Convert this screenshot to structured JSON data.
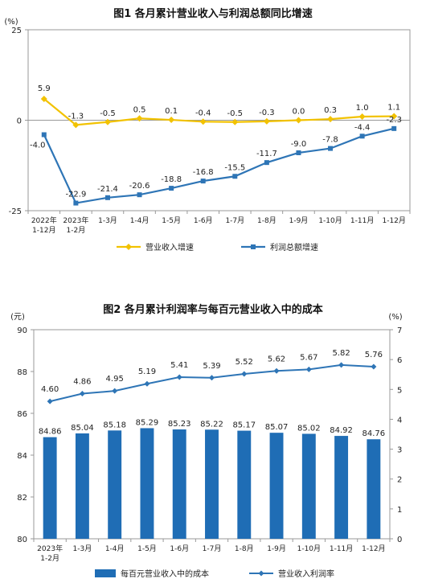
{
  "chart_data": [
    {
      "type": "line",
      "title": "图1  各月累计营业收入与利润总额同比增速",
      "y_unit": "(%)",
      "ylim": [
        -25,
        25
      ],
      "yticks": [
        "25",
        "0",
        "-25"
      ],
      "categories": [
        [
          "2022年",
          "1-12月"
        ],
        [
          "2023年",
          "1-2月"
        ],
        [
          "1-3月"
        ],
        [
          "1-4月"
        ],
        [
          "1-5月"
        ],
        [
          "1-6月"
        ],
        [
          "1-7月"
        ],
        [
          "1-8月"
        ],
        [
          "1-9月"
        ],
        [
          "1-10月"
        ],
        [
          "1-11月"
        ],
        [
          "1-12月"
        ]
      ],
      "series": [
        {
          "name": "营业收入增速",
          "color": "#F2C200",
          "values": [
            5.9,
            -1.3,
            -0.5,
            0.5,
            0.1,
            -0.4,
            -0.5,
            -0.3,
            0.0,
            0.3,
            1.0,
            1.1
          ],
          "labels": [
            "5.9",
            "-1.3",
            "-0.5",
            "0.5",
            "0.1",
            "-0.4",
            "-0.5",
            "-0.3",
            "0.0",
            "0.3",
            "1.0",
            "1.1"
          ]
        },
        {
          "name": "利润总额增速",
          "color": "#2E75B6",
          "values": [
            -4.0,
            -22.9,
            -21.4,
            -20.6,
            -18.8,
            -16.8,
            -15.5,
            -11.7,
            -9.0,
            -7.8,
            -4.4,
            -2.3
          ],
          "labels": [
            "-4.0",
            "-22.9",
            "-21.4",
            "-20.6",
            "-18.8",
            "-16.8",
            "-15.5",
            "-11.7",
            "-9.0",
            "-7.8",
            "-4.4",
            "-2.3"
          ]
        }
      ],
      "legend_position": "bottom"
    },
    {
      "type": "bar+line",
      "title": "图2  各月累计利润率与每百元营业收入中的成本",
      "left_unit": "(元)",
      "right_unit": "(%)",
      "ylim_left": [
        80,
        90
      ],
      "yticks_left": [
        "80",
        "82",
        "84",
        "86",
        "88",
        "90"
      ],
      "ylim_right": [
        0,
        7
      ],
      "yticks_right": [
        "0",
        "1",
        "2",
        "3",
        "4",
        "5",
        "6",
        "7"
      ],
      "categories": [
        [
          "2023年",
          "1-2月"
        ],
        [
          "1-3月"
        ],
        [
          "1-4月"
        ],
        [
          "1-5月"
        ],
        [
          "1-6月"
        ],
        [
          "1-7月"
        ],
        [
          "1-8月"
        ],
        [
          "1-9月"
        ],
        [
          "1-10月"
        ],
        [
          "1-11月"
        ],
        [
          "1-12月"
        ]
      ],
      "series": [
        {
          "name": "每百元营业收入中的成本",
          "type": "bar",
          "axis": "left",
          "color": "#1F6DB5",
          "values": [
            84.86,
            85.04,
            85.18,
            85.29,
            85.23,
            85.22,
            85.17,
            85.07,
            85.02,
            84.92,
            84.76
          ],
          "labels": [
            "84.86",
            "85.04",
            "85.18",
            "85.29",
            "85.23",
            "85.22",
            "85.17",
            "85.07",
            "85.02",
            "84.92",
            "84.76"
          ]
        },
        {
          "name": "营业收入利润率",
          "type": "line",
          "axis": "right",
          "color": "#2E75B6",
          "values": [
            4.6,
            4.86,
            4.95,
            5.19,
            5.41,
            5.39,
            5.52,
            5.62,
            5.67,
            5.82,
            5.76
          ],
          "labels": [
            "4.60",
            "4.86",
            "4.95",
            "5.19",
            "5.41",
            "5.39",
            "5.52",
            "5.62",
            "5.67",
            "5.82",
            "5.76"
          ]
        }
      ],
      "legend_position": "bottom"
    }
  ]
}
